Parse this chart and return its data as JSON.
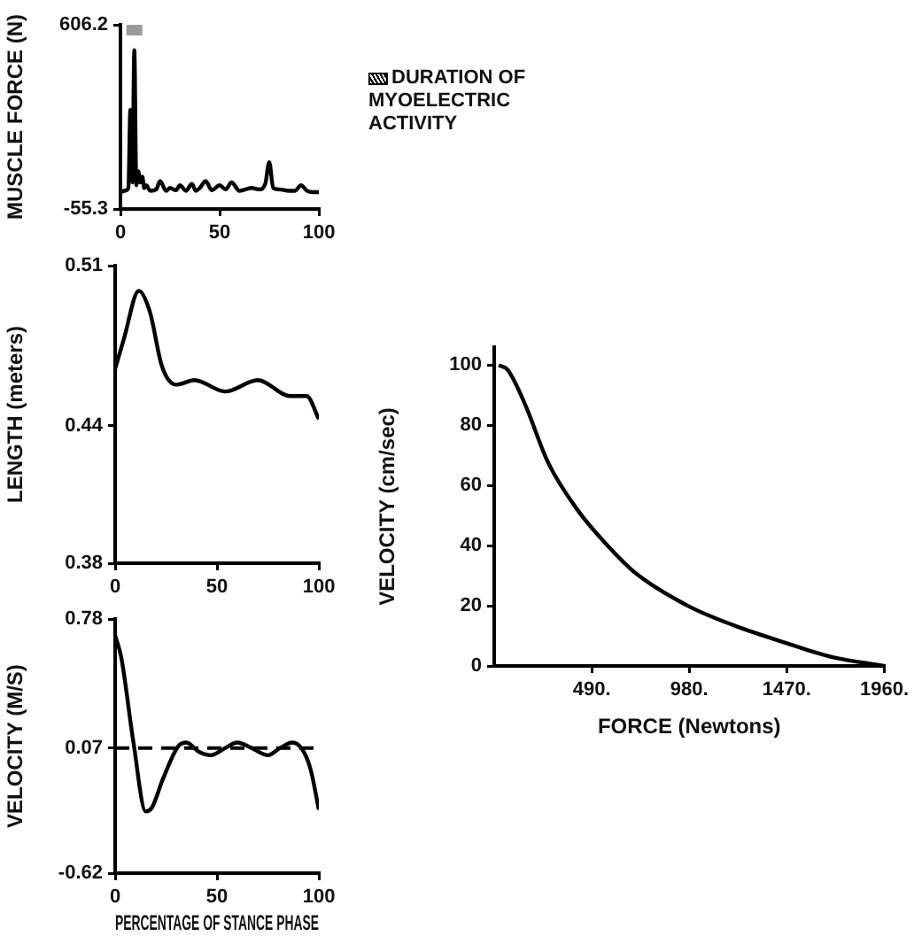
{
  "chart_data": [
    {
      "type": "line",
      "ylabel": "MUSCLE FORCE (N)",
      "color": "#000000",
      "x": [
        0,
        2,
        4,
        5,
        6,
        7,
        8,
        9,
        10,
        11,
        12,
        13,
        15,
        18,
        20,
        23,
        25,
        28,
        30,
        33,
        36,
        38,
        40,
        43,
        46,
        50,
        53,
        56,
        60,
        63,
        66,
        70,
        73,
        75,
        77,
        80,
        85,
        88,
        91,
        94,
        97,
        100
      ],
      "values": [
        5,
        10,
        20,
        300,
        40,
        515,
        30,
        80,
        40,
        61,
        20,
        30,
        10,
        15,
        45,
        10,
        20,
        12,
        30,
        10,
        35,
        10,
        20,
        45,
        12,
        30,
        15,
        40,
        10,
        15,
        20,
        15,
        35,
        113,
        20,
        15,
        10,
        10,
        30,
        10,
        5,
        5
      ],
      "xlim": [
        0,
        100
      ],
      "xticks": [
        0,
        50,
        100
      ],
      "ylim": [
        -55.3,
        606.2
      ],
      "yticks": [
        -55.3,
        606.2
      ],
      "bands": [
        {
          "axis": "x",
          "from": 3,
          "to": 11,
          "label": "DURATION OF MYOELECTRIC ACTIVITY",
          "color": "#000000"
        }
      ]
    },
    {
      "type": "line",
      "ylabel": "LENGTH (meters)",
      "color": "#000000",
      "x": [
        0,
        4.3,
        11.6,
        17,
        23,
        30,
        39,
        54,
        70,
        86,
        94,
        100
      ],
      "values": [
        0.465,
        0.478,
        0.499,
        0.49,
        0.466,
        0.458,
        0.46,
        0.455,
        0.46,
        0.453,
        0.453,
        0.443
      ],
      "xlim": [
        0,
        100
      ],
      "xticks": [
        0,
        50,
        100
      ],
      "ylim": [
        0.38,
        0.51
      ],
      "yticks": [
        0.38,
        0.44,
        0.51
      ]
    },
    {
      "type": "line",
      "ylabel": "VELOCITY (M/S)",
      "xlabel": "PERCENTAGE OF STANCE PHASE",
      "color": "#000000",
      "x": [
        0,
        3,
        9,
        15,
        18,
        23.5,
        31,
        35,
        41,
        47,
        54,
        60,
        67,
        75,
        81,
        87,
        92,
        96,
        100
      ],
      "values": [
        0.69,
        0.57,
        0.1,
        -0.28,
        -0.26,
        -0.1,
        0.08,
        0.1,
        0.05,
        0.03,
        0.07,
        0.1,
        0.07,
        0.03,
        0.07,
        0.1,
        0.06,
        -0.05,
        -0.27
      ],
      "xlim": [
        0,
        100
      ],
      "xticks": [
        0,
        50,
        100
      ],
      "ylim": [
        -0.62,
        0.78
      ],
      "yticks": [
        -0.62,
        0.07,
        0.78
      ],
      "ref_lines": [
        {
          "axis": "y",
          "value": 0.07,
          "line_style": "dashed",
          "color": "#000000"
        }
      ]
    },
    {
      "type": "line",
      "ylabel": "VELOCITY (cm/sec)",
      "xlabel": "FORCE (Newtons)",
      "color": "#000000",
      "x": [
        23,
        67,
        155,
        271,
        417,
        563,
        708,
        973,
        1204,
        1463,
        1700,
        1960
      ],
      "values": [
        100,
        98.5,
        87,
        67.6,
        52,
        40.5,
        31,
        20,
        13.5,
        7.7,
        2.9,
        0
      ],
      "xlim": [
        0,
        1960
      ],
      "xticks": [
        {
          "value": 490,
          "label": "490."
        },
        {
          "value": 980,
          "label": "980."
        },
        {
          "value": 1470,
          "label": "1470."
        },
        {
          "value": 1960,
          "label": "1960."
        }
      ],
      "ylim": [
        0,
        106
      ],
      "yticks": [
        0,
        20,
        40,
        60,
        80,
        100
      ]
    }
  ]
}
